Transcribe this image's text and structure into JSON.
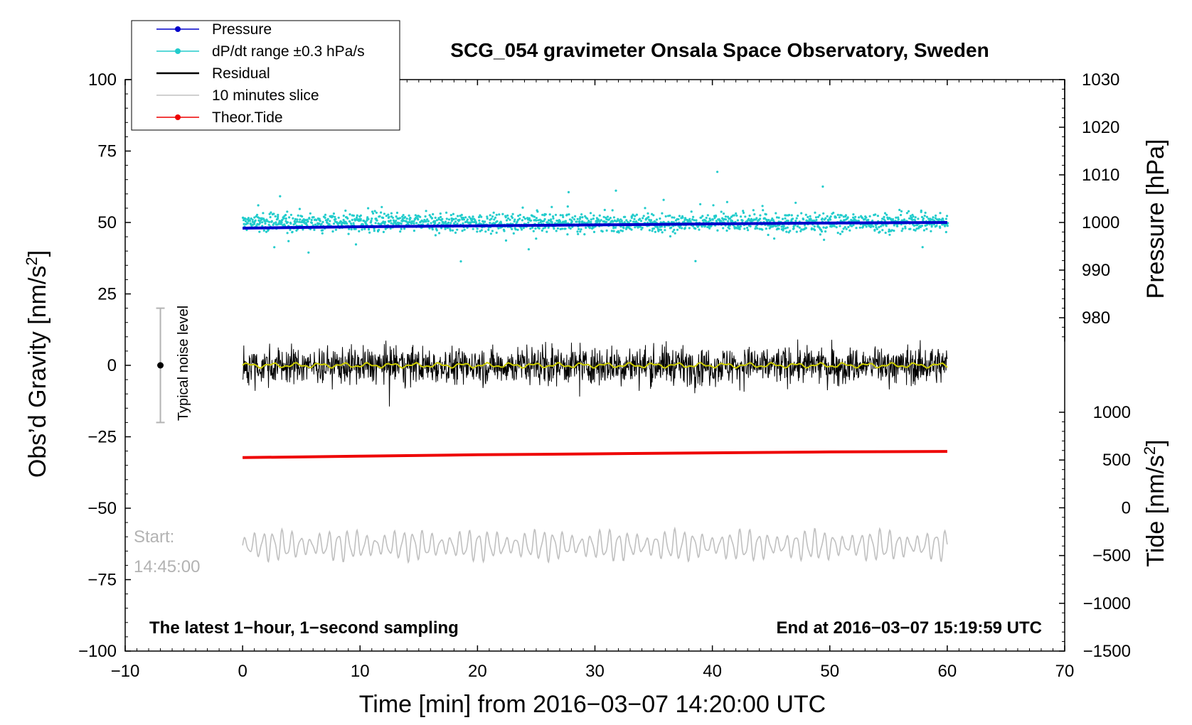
{
  "chart_data": {
    "type": "line",
    "title": "SCG_054 gravimeter Onsala Space Observatory, Sweden",
    "xlabel": "Time [min] from 2016−03−07 14:20:00 UTC",
    "ylabel_left": "Obs’d Gravity [nm/s²]",
    "ylabel_left_base": "Obs’d Gravity [nm/s",
    "ylabel_left_sup": "2",
    "ylabel_left_close": "]",
    "ylabel_right_pressure": "Pressure [hPa]",
    "ylabel_right_tide": "Tide [nm/s²]",
    "ylabel_right_tide_base": "Tide [nm/s",
    "ylabel_right_tide_sup": "2",
    "ylabel_right_tide_close": "]",
    "xlim": [
      -10,
      70
    ],
    "ylim": [
      -100,
      100
    ],
    "pressure_range": [
      970,
      1030
    ],
    "tide_range": [
      -1500,
      1000
    ],
    "x_ticks": [
      "−10",
      "0",
      "10",
      "20",
      "30",
      "40",
      "50",
      "60",
      "70"
    ],
    "x_tick_values": [
      -10,
      0,
      10,
      20,
      30,
      40,
      50,
      60,
      70
    ],
    "y_ticks": [
      "−100",
      "−75",
      "−50",
      "−25",
      "0",
      "25",
      "50",
      "75",
      "100"
    ],
    "y_tick_values": [
      -100,
      -75,
      -50,
      -25,
      0,
      25,
      50,
      75,
      100
    ],
    "pressure_ticks": [
      "980",
      "990",
      "1000",
      "1010",
      "1020",
      "1030"
    ],
    "pressure_tick_values": [
      980,
      990,
      1000,
      1010,
      1020,
      1030
    ],
    "tide_ticks": [
      "−1500",
      "−1000",
      "−500",
      "0",
      "500",
      "1000"
    ],
    "tide_tick_values": [
      -1500,
      -1000,
      -500,
      0,
      500,
      1000
    ],
    "legend": [
      {
        "label": "Pressure",
        "color": "#0000cc",
        "marker": true
      },
      {
        "label": "dP/dt range ±0.3 hPa/s",
        "color": "#22cccc",
        "marker": true
      },
      {
        "label": "Residual",
        "color": "#000000",
        "marker": false
      },
      {
        "label": "10 minutes slice",
        "color": "#c0c0c0",
        "marker": false
      },
      {
        "label": "Theor.Tide",
        "color": "#ee0000",
        "marker": true
      }
    ],
    "series": [
      {
        "name": "Pressure",
        "axis": "pressure",
        "color": "#0000cc",
        "x": [
          0,
          10,
          20,
          30,
          40,
          50,
          60
        ],
        "values": [
          998.8,
          999.1,
          999.3,
          999.5,
          999.7,
          999.9,
          1000.0
        ]
      },
      {
        "name": "dP/dt range",
        "axis": "gravity",
        "color": "#22cccc",
        "center": 50.0,
        "spread": 2.0
      },
      {
        "name": "Residual",
        "axis": "gravity",
        "color": "#000000",
        "center": 0.0,
        "spread": 4.0
      },
      {
        "name": "Residual smoothed",
        "axis": "gravity",
        "color": "#cccc00",
        "center": 0.0
      },
      {
        "name": "Theor.Tide",
        "axis": "tide",
        "color": "#ee0000",
        "x": [
          0,
          10,
          20,
          30,
          40,
          50,
          60
        ],
        "values": [
          525,
          540,
          555,
          565,
          575,
          585,
          590
        ]
      },
      {
        "name": "10 minutes slice",
        "axis": "gravity",
        "color": "#c0c0c0",
        "center": -63.0,
        "amplitude": 6.0
      }
    ],
    "noise_bar": {
      "label": "Typical noise level",
      "x": -7,
      "center": 0,
      "low": -20,
      "high": 20
    },
    "annotations": {
      "start_label": "Start:",
      "start_time": "14:45:00",
      "bottom_left": "The latest 1−hour, 1−second sampling",
      "bottom_right": "End at 2016−03−07 15:19:59 UTC"
    },
    "colors": {
      "pressure": "#0000cc",
      "dpdt": "#22cccc",
      "residual": "#000000",
      "smooth": "#cccc00",
      "tide": "#ee0000",
      "slice": "#c0c0c0"
    }
  }
}
